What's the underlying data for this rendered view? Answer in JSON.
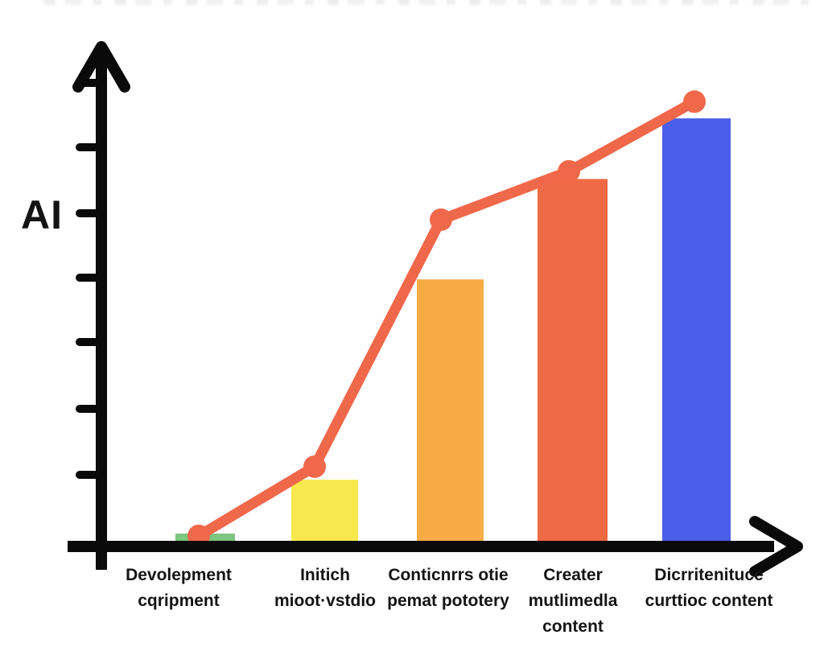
{
  "chart_data": {
    "type": "bar+line",
    "title": "",
    "xlabel": "",
    "ylabel": "AI",
    "y_axis_labeled": false,
    "y_tick_count": 7,
    "ylim": [
      0,
      1
    ],
    "legend": "none",
    "grid": false,
    "categories": [
      "Devolepment cqripment",
      "Initich mioot·vstdio",
      "Conticnrrs otie pemat pototery",
      "Creater mutlimedla content",
      "Dicrritenituce curttioc content"
    ],
    "category_lines": [
      [
        "Devolepment",
        "cqripment"
      ],
      [
        "Initich",
        "mioot·vstdio"
      ],
      [
        "Conticnrrs otie",
        "pemat pototery"
      ],
      [
        "Creater",
        "mutlimedla",
        "content"
      ],
      [
        "Dicrritenituce",
        "curttioc content"
      ]
    ],
    "series": [
      {
        "name": "bars",
        "type": "bar",
        "values": [
          0.016,
          0.135,
          0.578,
          0.8,
          0.934
        ],
        "colors": [
          "#7cc67e",
          "#f7e94d",
          "#f6ab44",
          "#ed6a44",
          "#4b5ee9"
        ]
      },
      {
        "name": "trend-line",
        "type": "line",
        "marker": "circle",
        "color": "#f0684a",
        "values": [
          0.011,
          0.164,
          0.71,
          0.817,
          0.971
        ]
      }
    ]
  },
  "colors": {
    "axis": "#0a0a0a",
    "text": "#141414",
    "background": "#ffffff"
  }
}
